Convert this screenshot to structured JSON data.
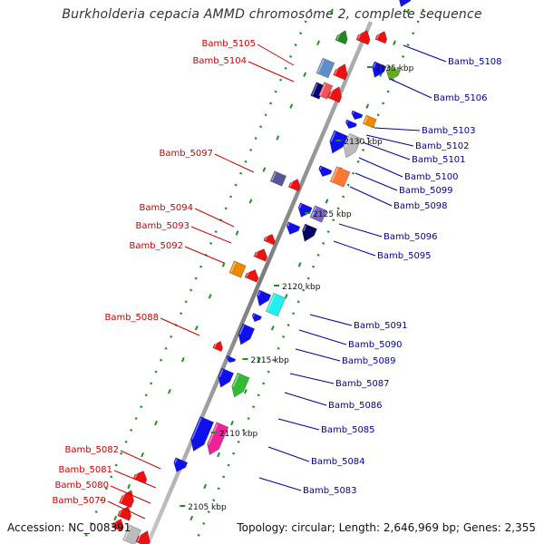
{
  "title": "Burkholderia cepacia AMMD chromosome 2, complete sequence",
  "accession_text": "Accession: NC_008391",
  "summary_text": "Topology: circular; Length: 2,646,969 bp; Genes: 2,355",
  "colors": {
    "left_label": "#cc0000",
    "right_label": "#000099",
    "backbone": "#8f8f8f",
    "tick": "#1f8f1f",
    "reverse_gene": "#ee1111",
    "forward_gene": "#1010ee"
  },
  "scale_labels": [
    {
      "text": "2135 kbp"
    },
    {
      "text": "2130 kbp"
    },
    {
      "text": "2125 kbp"
    },
    {
      "text": "2120 kbp"
    },
    {
      "text": "2115 kbp"
    },
    {
      "text": "2110 kbp"
    },
    {
      "text": "2105 kbp"
    }
  ],
  "left_genes": [
    {
      "label": "Bamb_5105"
    },
    {
      "label": "Bamb_5104"
    },
    {
      "label": "Bamb_5097"
    },
    {
      "label": "Bamb_5094"
    },
    {
      "label": "Bamb_5093"
    },
    {
      "label": "Bamb_5092"
    },
    {
      "label": "Bamb_5088"
    },
    {
      "label": "Bamb_5082"
    },
    {
      "label": "Bamb_5081"
    },
    {
      "label": "Bamb_5080"
    },
    {
      "label": "Bamb_5079"
    }
  ],
  "right_genes": [
    {
      "label": "Bamb_5108"
    },
    {
      "label": "Bamb_5106"
    },
    {
      "label": "Bamb_5103"
    },
    {
      "label": "Bamb_5102"
    },
    {
      "label": "Bamb_5101"
    },
    {
      "label": "Bamb_5100"
    },
    {
      "label": "Bamb_5099"
    },
    {
      "label": "Bamb_5098"
    },
    {
      "label": "Bamb_5096"
    },
    {
      "label": "Bamb_5095"
    },
    {
      "label": "Bamb_5091"
    },
    {
      "label": "Bamb_5090"
    },
    {
      "label": "Bamb_5089"
    },
    {
      "label": "Bamb_5087"
    },
    {
      "label": "Bamb_5086"
    },
    {
      "label": "Bamb_5085"
    },
    {
      "label": "Bamb_5084"
    },
    {
      "label": "Bamb_5083"
    }
  ]
}
